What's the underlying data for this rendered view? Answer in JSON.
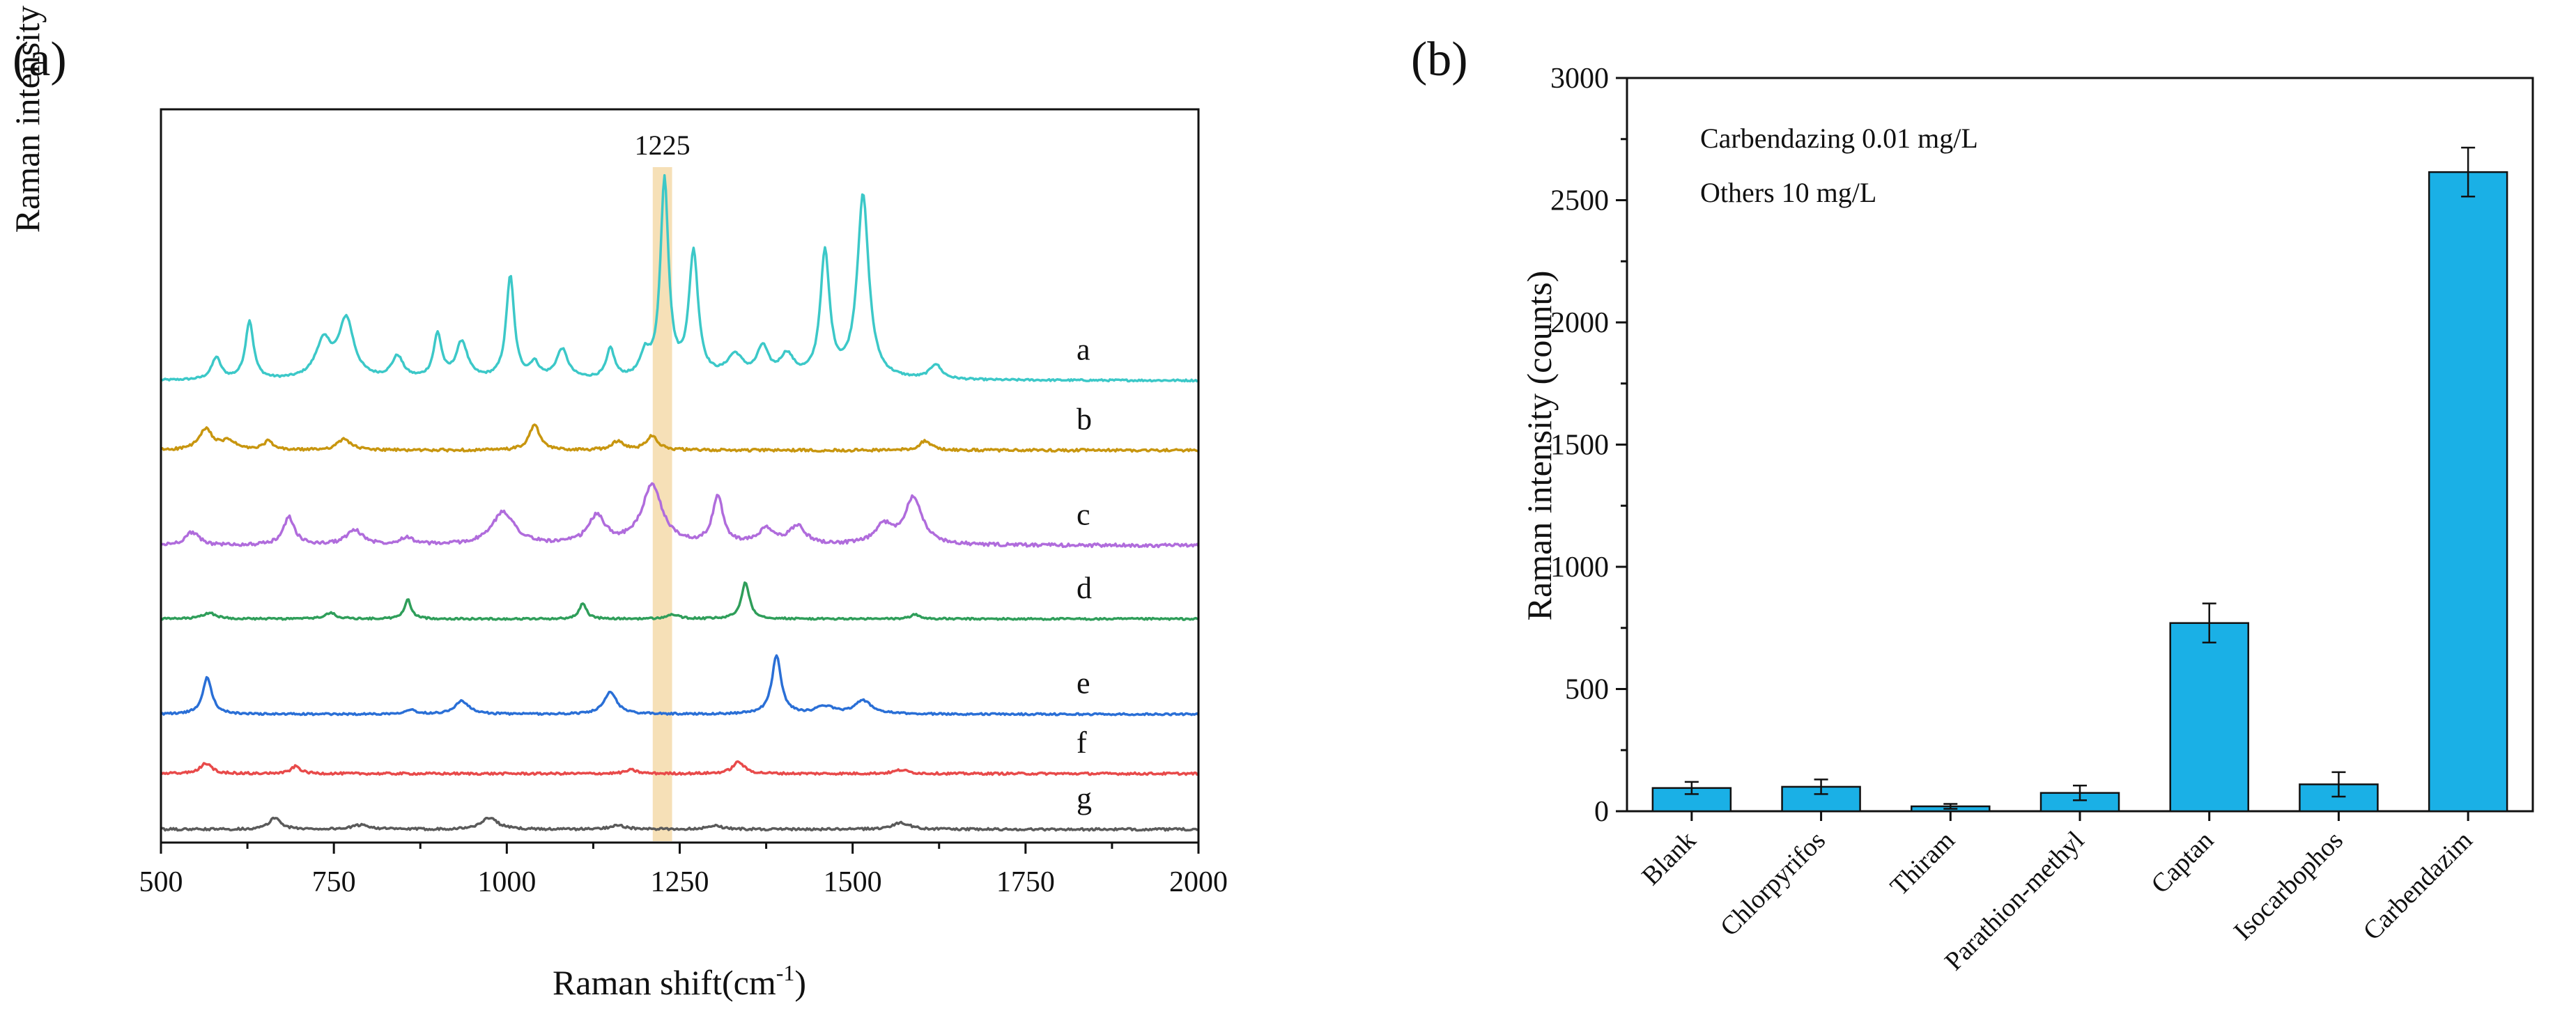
{
  "chart_data": [
    {
      "type": "line",
      "panel_label": "(a)",
      "xlabel": "Raman shift(cm",
      "xlabel_sup": "-1",
      "xlabel_tail": ")",
      "ylabel": "Raman intensity (counts)",
      "xlim": [
        500,
        2000
      ],
      "xticks": [
        500,
        750,
        1000,
        1250,
        1500,
        1750,
        2000
      ],
      "xtick_labels": [
        "500",
        "750",
        "1000",
        "1250",
        "1500",
        "1750",
        "2000"
      ],
      "ylim": [
        0,
        100
      ],
      "highlight": {
        "center": 1225,
        "width": 28,
        "label": "1225",
        "color": "#f5deb3"
      },
      "series": [
        {
          "name": "a",
          "color": "#3cc8c8",
          "baseline": 63,
          "noise": 0.25,
          "peaks": [
            [
              580,
              3,
              8
            ],
            [
              628,
              8,
              7
            ],
            [
              735,
              5,
              14
            ],
            [
              768,
              8,
              13
            ],
            [
              842,
              3,
              10
            ],
            [
              900,
              6,
              7
            ],
            [
              935,
              5,
              10
            ],
            [
              1005,
              14,
              7
            ],
            [
              1040,
              2,
              8
            ],
            [
              1080,
              4,
              10
            ],
            [
              1150,
              4,
              7
            ],
            [
              1200,
              3,
              8
            ],
            [
              1228,
              27,
              7
            ],
            [
              1270,
              17,
              8
            ],
            [
              1330,
              3,
              14
            ],
            [
              1370,
              4,
              10
            ],
            [
              1405,
              3,
              12
            ],
            [
              1460,
              17,
              8
            ],
            [
              1515,
              25,
              10
            ],
            [
              1620,
              2,
              10
            ]
          ]
        },
        {
          "name": "b",
          "color": "#c8960f",
          "baseline": 53.5,
          "noise": 0.35,
          "peaks": [
            [
              565,
              2.8,
              12
            ],
            [
              598,
              1.2,
              12
            ],
            [
              655,
              1.2,
              8
            ],
            [
              765,
              1.5,
              12
            ],
            [
              1040,
              3.5,
              9
            ],
            [
              1160,
              1.2,
              10
            ],
            [
              1210,
              2,
              10
            ],
            [
              1605,
              1.3,
              10
            ]
          ]
        },
        {
          "name": "c",
          "color": "#b06cdc",
          "baseline": 40.5,
          "noise": 0.45,
          "peaks": [
            [
              545,
              1.8,
              12
            ],
            [
              685,
              3.8,
              10
            ],
            [
              780,
              2,
              15
            ],
            [
              855,
              1,
              12
            ],
            [
              995,
              4.5,
              20
            ],
            [
              1130,
              3.8,
              15
            ],
            [
              1210,
              8,
              18
            ],
            [
              1305,
              6.5,
              9
            ],
            [
              1375,
              2,
              14
            ],
            [
              1420,
              2.5,
              14
            ],
            [
              1545,
              2.5,
              15
            ],
            [
              1588,
              6.5,
              15
            ]
          ]
        },
        {
          "name": "d",
          "color": "#2f9e5a",
          "baseline": 30.5,
          "noise": 0.25,
          "peaks": [
            [
              570,
              0.8,
              12
            ],
            [
              745,
              0.8,
              10
            ],
            [
              857,
              2.6,
              6
            ],
            [
              1110,
              2.2,
              6
            ],
            [
              1240,
              0.6,
              10
            ],
            [
              1345,
              5,
              7
            ],
            [
              1590,
              0.6,
              8
            ]
          ]
        },
        {
          "name": "e",
          "color": "#2a6fd6",
          "baseline": 17.5,
          "noise": 0.25,
          "peaks": [
            [
              567,
              5,
              8
            ],
            [
              860,
              0.6,
              10
            ],
            [
              935,
              1.8,
              12
            ],
            [
              1150,
              3,
              11
            ],
            [
              1390,
              8,
              8
            ],
            [
              1460,
              1,
              15
            ],
            [
              1515,
              1.8,
              15
            ]
          ]
        },
        {
          "name": "f",
          "color": "#e84a4a",
          "baseline": 9.4,
          "noise": 0.3,
          "peaks": [
            [
              565,
              1.4,
              10
            ],
            [
              695,
              1,
              8
            ],
            [
              1180,
              0.5,
              10
            ],
            [
              1335,
              1.6,
              10
            ],
            [
              1570,
              0.5,
              12
            ]
          ]
        },
        {
          "name": "g",
          "color": "#5a5a5a",
          "baseline": 1.8,
          "noise": 0.3,
          "peaks": [
            [
              665,
              1.6,
              10
            ],
            [
              790,
              0.6,
              15
            ],
            [
              975,
              1.6,
              14
            ],
            [
              1160,
              0.6,
              12
            ],
            [
              1300,
              0.5,
              14
            ],
            [
              1570,
              0.9,
              15
            ]
          ]
        }
      ]
    },
    {
      "type": "bar",
      "panel_label": "(b)",
      "ylabel": "Raman intensity (counts)",
      "ylim": [
        0,
        3000
      ],
      "yticks": [
        0,
        500,
        1000,
        1500,
        2000,
        2500,
        3000
      ],
      "ytick_labels": [
        "0",
        "500",
        "1000",
        "1500",
        "2000",
        "2500",
        "3000"
      ],
      "bar_color": "#1ab0e6",
      "categories": [
        "Blank",
        "Chlorpyrifos",
        "Thiram",
        "Parathion-methyl",
        "Captan",
        "Isocarbophos",
        "Carbendazim"
      ],
      "values": [
        95,
        100,
        20,
        75,
        770,
        110,
        2615
      ],
      "errors": [
        25,
        30,
        10,
        30,
        80,
        50,
        100
      ],
      "annotations": [
        "Carbendazing 0.01 mg/L",
        "Others  10 mg/L"
      ]
    }
  ]
}
